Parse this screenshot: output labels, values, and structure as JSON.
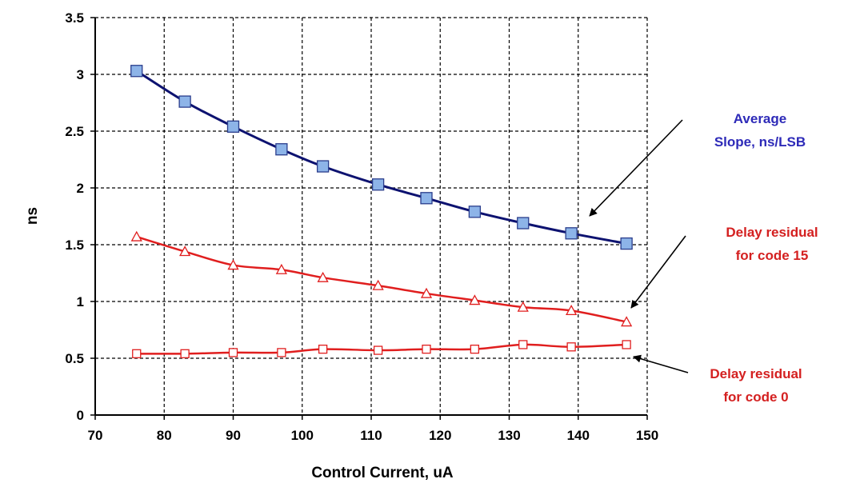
{
  "chart_data": {
    "type": "line",
    "title": "",
    "xlabel": "Control Current, uA",
    "ylabel": "ns",
    "xlim": [
      70,
      150
    ],
    "ylim": [
      0,
      3.5
    ],
    "x_ticks": [
      "70",
      "80",
      "90",
      "100",
      "110",
      "120",
      "130",
      "140",
      "150"
    ],
    "y_ticks": [
      "0",
      "0.5",
      "1",
      "1.5",
      "2",
      "2.5",
      "3",
      "3.5"
    ],
    "grid": true,
    "legend": "none",
    "x": [
      76,
      83,
      90,
      97,
      103,
      111,
      118,
      125,
      132,
      139,
      147
    ],
    "series": [
      {
        "name": "Average Slope, ns/LSB",
        "color": "#0d1270",
        "marker": "filled-square",
        "marker_color": "#8db4e8",
        "values": [
          3.03,
          2.76,
          2.54,
          2.34,
          2.19,
          2.03,
          1.91,
          1.79,
          1.69,
          1.6,
          1.51
        ]
      },
      {
        "name": "Delay residual for code 15",
        "color": "#e01e1e",
        "marker": "open-triangle",
        "values": [
          1.57,
          1.44,
          1.32,
          1.28,
          1.21,
          1.14,
          1.07,
          1.01,
          0.95,
          0.92,
          0.82
        ]
      },
      {
        "name": "Delay residual for code 0",
        "color": "#e01e1e",
        "marker": "open-square",
        "values": [
          0.54,
          0.54,
          0.55,
          0.55,
          0.58,
          0.57,
          0.58,
          0.58,
          0.62,
          0.6,
          0.62
        ]
      }
    ],
    "annotations": [
      {
        "lines": [
          "Average",
          "Slope, ns/LSB"
        ],
        "color": "#2d2ab8"
      },
      {
        "lines": [
          "Delay residual",
          "for code 15"
        ],
        "color": "#d42020"
      },
      {
        "lines": [
          "Delay residual",
          "for code 0"
        ],
        "color": "#d42020"
      }
    ]
  }
}
